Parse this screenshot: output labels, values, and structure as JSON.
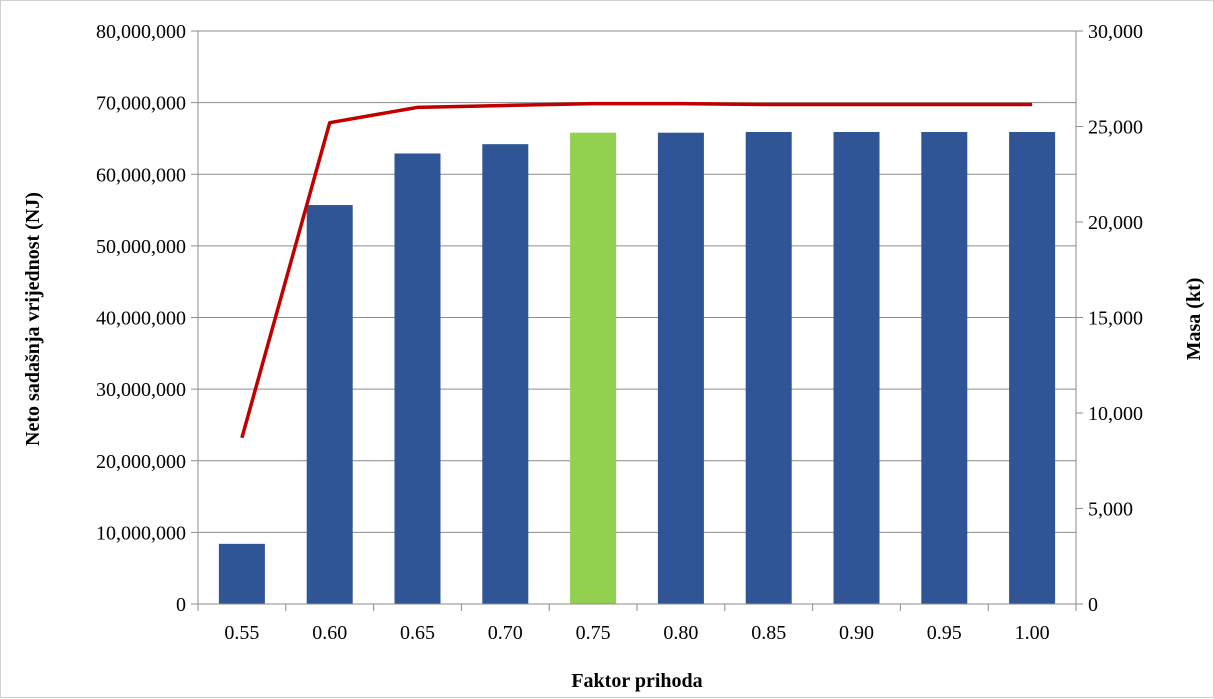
{
  "chart_data": {
    "type": "bar",
    "title": "",
    "xlabel": "Faktor prihoda",
    "ylabel": "Neto sadašnja vrijednost (NJ)",
    "y2label": "Masa (kt)",
    "categories": [
      "0.55",
      "0.60",
      "0.65",
      "0.70",
      "0.75",
      "0.80",
      "0.85",
      "0.90",
      "0.95",
      "1.00"
    ],
    "ylim": [
      0,
      80000000
    ],
    "y2lim": [
      0,
      30000
    ],
    "yticks": [
      "0",
      "10,000,000",
      "20,000,000",
      "30,000,000",
      "40,000,000",
      "50,000,000",
      "60,000,000",
      "70,000,000",
      "80,000,000"
    ],
    "y2ticks": [
      "0",
      "5,000",
      "10,000",
      "15,000",
      "20,000",
      "25,000",
      "30,000"
    ],
    "grid": true,
    "highlight_index": 4,
    "series": [
      {
        "type": "bar",
        "axis": "left",
        "color": "#2f5597",
        "highlight_color": "#92d050",
        "values": [
          8400000,
          55700000,
          62900000,
          64200000,
          65800000,
          65800000,
          65900000,
          65900000,
          65900000,
          65900000
        ]
      },
      {
        "type": "line",
        "axis": "right",
        "color": "#c00000",
        "values": [
          8700,
          25200,
          26000,
          26100,
          26200,
          26200,
          26150,
          26150,
          26150,
          26150
        ]
      }
    ]
  }
}
